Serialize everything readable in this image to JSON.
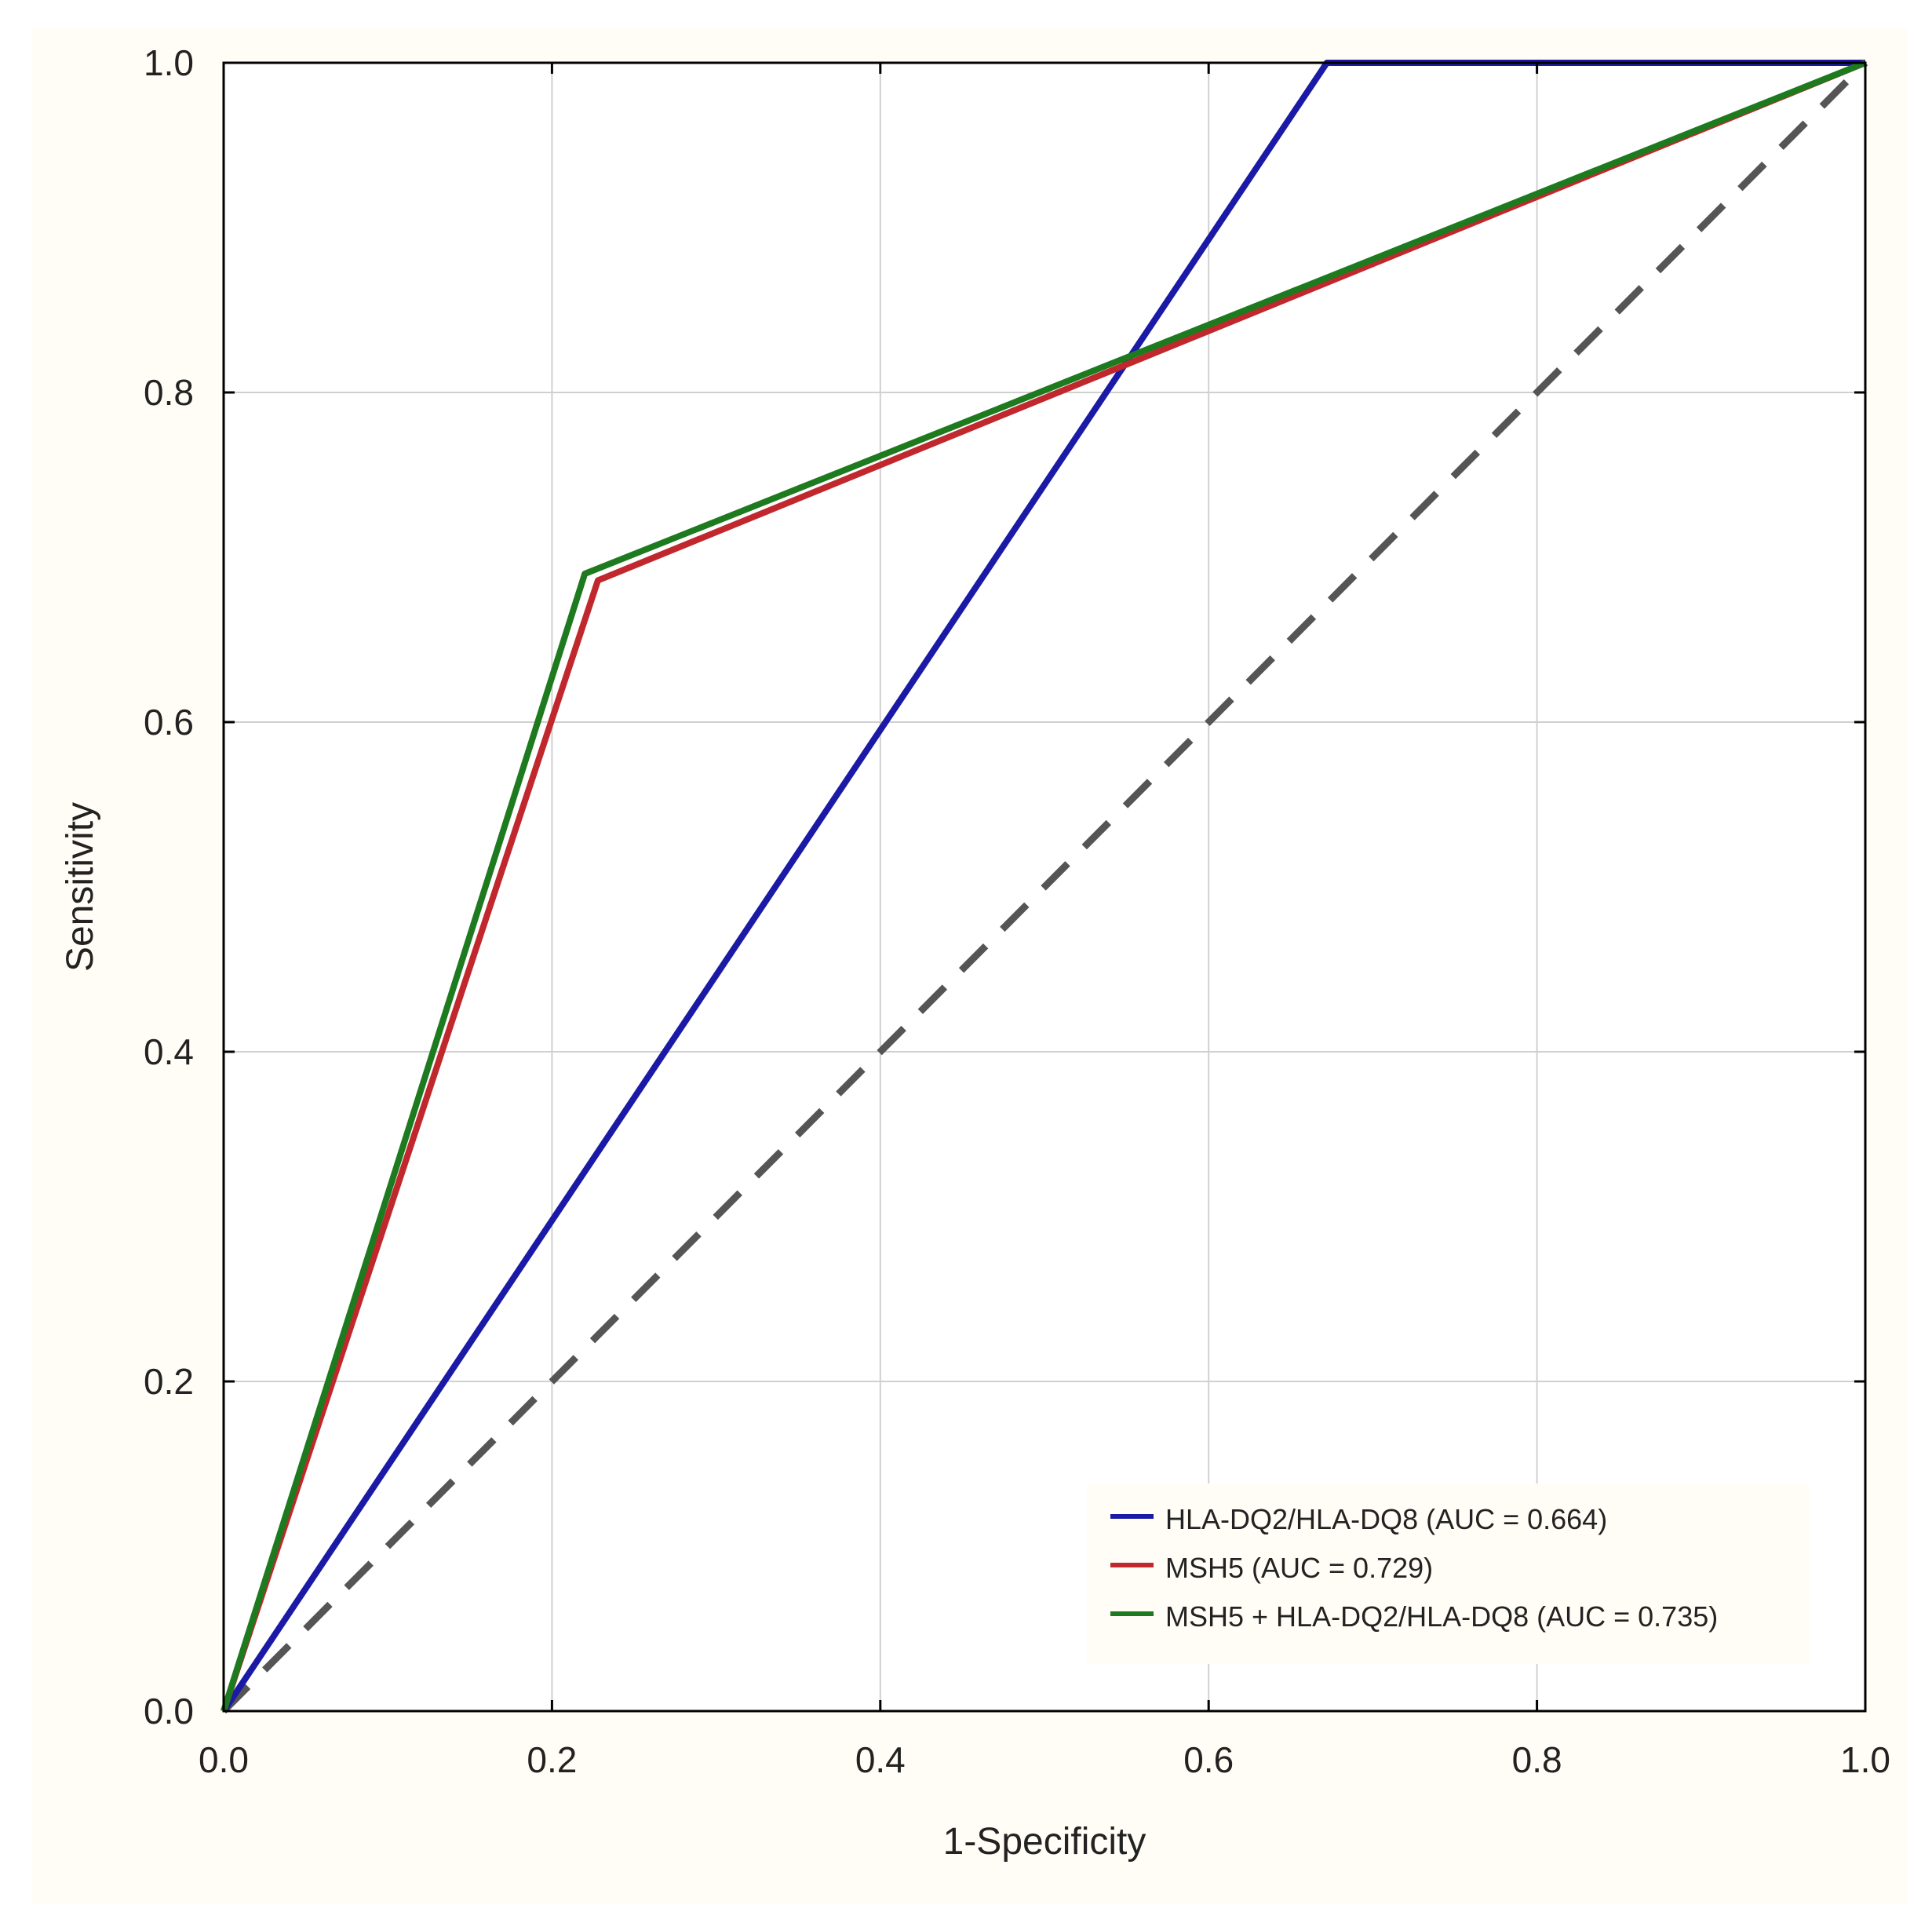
{
  "chart_data": {
    "type": "line",
    "title": "",
    "xlabel": "1-Specificity",
    "ylabel": "Sensitivity",
    "xlim": [
      0.0,
      1.0
    ],
    "ylim": [
      0.0,
      1.0
    ],
    "x_ticks": [
      "0.0",
      "0.2",
      "0.4",
      "0.6",
      "0.8",
      "1.0"
    ],
    "y_ticks": [
      "0.0",
      "0.2",
      "0.4",
      "0.6",
      "0.8",
      "1.0"
    ],
    "grid": true,
    "legend_position": "bottom-right",
    "colors": {
      "figure_background": "#fffdf5",
      "plot_background": "#ffffff",
      "grid": "#d0d0d0",
      "axis": "#000000",
      "reference": "#555555"
    },
    "reference_line": {
      "name": "reference",
      "style": "dashed",
      "x": [
        0.0,
        1.0
      ],
      "y": [
        0.0,
        1.0
      ]
    },
    "series": [
      {
        "name": "HLA-DQ2/HLA-DQ8 (AUC = 0.664)",
        "color": "#1a1aa6",
        "x": [
          0.0,
          0.672,
          1.0
        ],
        "y": [
          0.0,
          1.0,
          1.0
        ]
      },
      {
        "name": "MSH5 (AUC = 0.729)",
        "color": "#c0282d",
        "x": [
          0.0,
          0.228,
          1.0
        ],
        "y": [
          0.0,
          0.686,
          1.0
        ]
      },
      {
        "name": "MSH5 + HLA-DQ2/HLA-DQ8 (AUC = 0.735)",
        "color": "#1e7a1e",
        "x": [
          0.0,
          0.22,
          1.0
        ],
        "y": [
          0.0,
          0.69,
          1.0
        ]
      }
    ]
  }
}
